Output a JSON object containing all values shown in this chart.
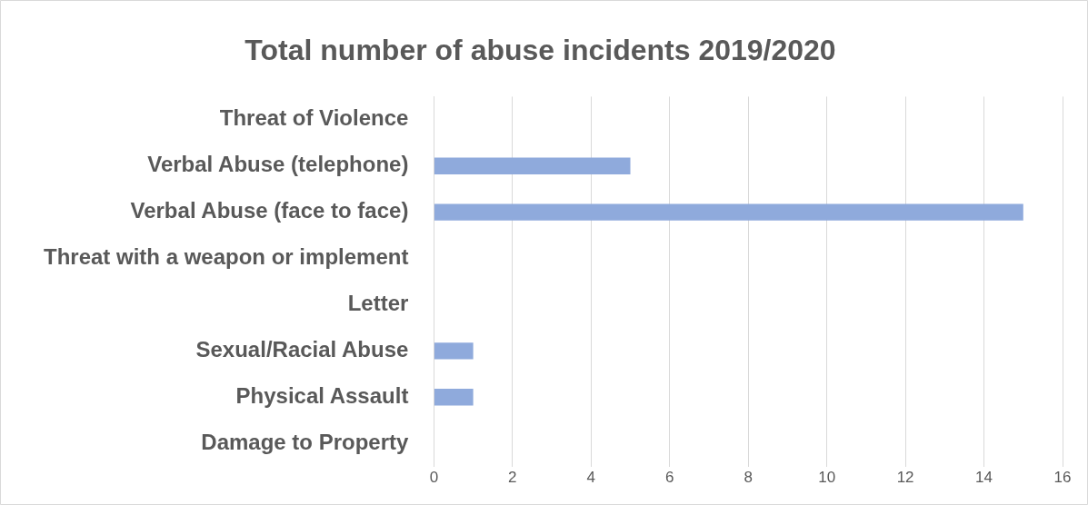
{
  "chart_data": {
    "type": "bar",
    "orientation": "horizontal",
    "title": "Total number of abuse incidents 2019/2020",
    "categories": [
      "Threat of Violence",
      "Verbal Abuse (telephone)",
      "Verbal Abuse (face to face)",
      "Threat with a weapon or implement",
      "Letter",
      "Sexual/Racial Abuse",
      "Physical Assault",
      "Damage to Property"
    ],
    "values": [
      0,
      5,
      15,
      0,
      0,
      1,
      1,
      0
    ],
    "color": "#8faadc",
    "xlim": [
      0,
      16
    ],
    "xticks": [
      0,
      2,
      4,
      6,
      8,
      10,
      12,
      14,
      16
    ],
    "grid": "x",
    "legend": false
  }
}
